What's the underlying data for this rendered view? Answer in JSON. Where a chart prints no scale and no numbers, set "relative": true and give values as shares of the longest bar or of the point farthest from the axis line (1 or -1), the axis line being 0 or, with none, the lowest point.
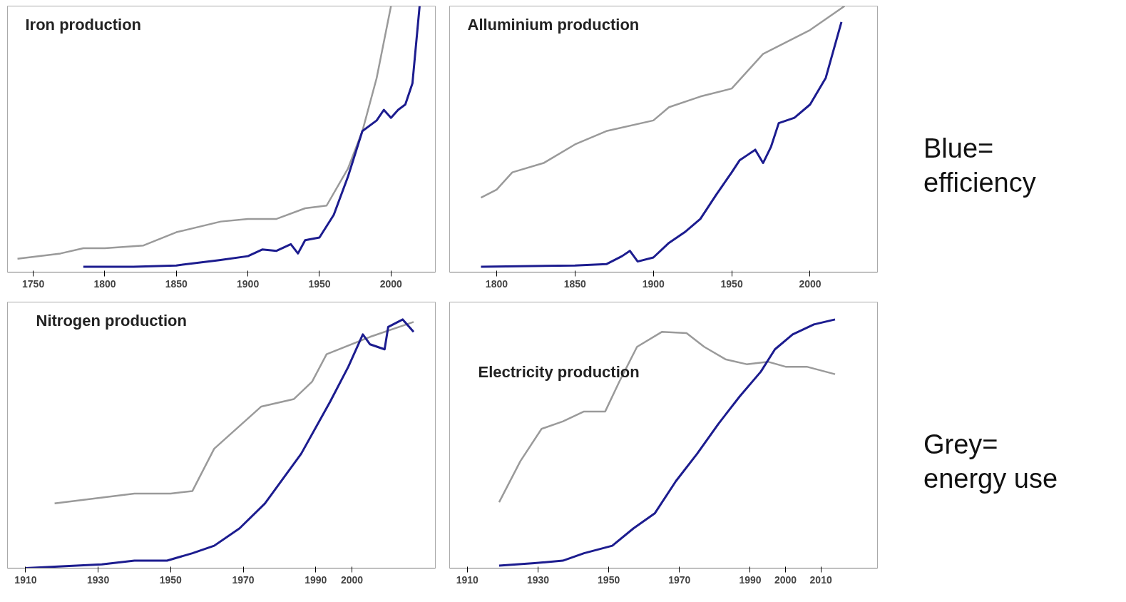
{
  "chart_data": [
    {
      "type": "line",
      "title": "Iron production",
      "relative": true,
      "tick_labels": "x",
      "grid": false,
      "xlim": [
        1732,
        2031
      ],
      "xticks": [
        1750,
        1800,
        1850,
        1900,
        1950,
        2000
      ],
      "series": [
        {
          "color": "#9a9a9a",
          "x": [
            1739,
            1769,
            1785,
            1800,
            1827,
            1850,
            1881,
            1900,
            1920,
            1940,
            1955,
            1970,
            1980,
            1990,
            2000
          ],
          "values": [
            0.05,
            0.07,
            0.09,
            0.09,
            0.1,
            0.15,
            0.19,
            0.2,
            0.2,
            0.24,
            0.25,
            0.39,
            0.53,
            0.73,
            1.0
          ]
        },
        {
          "color": "#1c1c8f",
          "x": [
            1785,
            1820,
            1850,
            1880,
            1900,
            1910,
            1920,
            1930,
            1935,
            1940,
            1950,
            1960,
            1970,
            1980,
            1990,
            1995,
            2000,
            2005,
            2010,
            2015,
            2020
          ],
          "values": [
            0.02,
            0.02,
            0.025,
            0.045,
            0.06,
            0.085,
            0.08,
            0.105,
            0.07,
            0.12,
            0.13,
            0.215,
            0.36,
            0.53,
            0.57,
            0.61,
            0.58,
            0.61,
            0.63,
            0.71,
            1.0
          ]
        }
      ]
    },
    {
      "type": "line",
      "title": "Alluminium production",
      "relative": true,
      "tick_labels": "x",
      "grid": false,
      "xlim": [
        1770,
        2043
      ],
      "xticks": [
        1800,
        1850,
        1900,
        1950,
        2000
      ],
      "annotations": [
        "Blue=\nefficiency"
      ],
      "series": [
        {
          "color": "#9a9a9a",
          "x": [
            1790,
            1800,
            1810,
            1830,
            1850,
            1870,
            1900,
            1910,
            1930,
            1950,
            1970,
            2000,
            2022
          ],
          "values": [
            0.28,
            0.31,
            0.375,
            0.41,
            0.48,
            0.53,
            0.57,
            0.62,
            0.66,
            0.69,
            0.82,
            0.91,
            1.0
          ]
        },
        {
          "color": "#1c1c8f",
          "x": [
            1790,
            1850,
            1870,
            1880,
            1885,
            1890,
            1900,
            1910,
            1920,
            1930,
            1940,
            1950,
            1955,
            1960,
            1965,
            1970,
            1975,
            1980,
            1990,
            2000,
            2010,
            2020
          ],
          "values": [
            0.02,
            0.025,
            0.03,
            0.06,
            0.08,
            0.04,
            0.055,
            0.11,
            0.15,
            0.2,
            0.29,
            0.375,
            0.42,
            0.44,
            0.46,
            0.41,
            0.47,
            0.56,
            0.58,
            0.63,
            0.73,
            0.94
          ]
        }
      ]
    },
    {
      "type": "line",
      "title": "Nitrogen production",
      "relative": true,
      "tick_labels": "x",
      "grid": false,
      "xlim": [
        1905,
        2023
      ],
      "xticks": [
        1910,
        1930,
        1950,
        1970,
        1990,
        2000
      ],
      "series": [
        {
          "color": "#9a9a9a",
          "x": [
            1918,
            1940,
            1950,
            1956,
            1962,
            1975,
            1984,
            1989,
            1993,
            2005,
            2017
          ],
          "values": [
            0.26,
            0.3,
            0.3,
            0.31,
            0.48,
            0.65,
            0.68,
            0.75,
            0.86,
            0.93,
            0.99
          ]
        },
        {
          "color": "#1c1c8f",
          "x": [
            1910,
            1931,
            1940,
            1949,
            1956,
            1962,
            1969,
            1976,
            1986,
            1994,
            1999,
            2003,
            2005,
            2009,
            2010,
            2014,
            2017
          ],
          "values": [
            0,
            0.015,
            0.03,
            0.03,
            0.06,
            0.09,
            0.16,
            0.26,
            0.46,
            0.67,
            0.81,
            0.94,
            0.9,
            0.88,
            0.97,
            1.0,
            0.95
          ]
        }
      ]
    },
    {
      "type": "line",
      "title": "Electricity production",
      "relative": true,
      "tick_labels": "x",
      "grid": false,
      "xlim": [
        1905,
        2026
      ],
      "xticks": [
        1910,
        1930,
        1950,
        1970,
        1990,
        2000,
        2010
      ],
      "annotations": [
        "Grey=\nenergy use"
      ],
      "series": [
        {
          "color": "#9a9a9a",
          "x": [
            1919,
            1925,
            1931,
            1937,
            1943,
            1949,
            1953,
            1958,
            1965,
            1972,
            1977,
            1983,
            1989,
            1995,
            2000,
            2006,
            2014
          ],
          "values": [
            0.265,
            0.43,
            0.56,
            0.59,
            0.63,
            0.63,
            0.75,
            0.89,
            0.95,
            0.945,
            0.89,
            0.84,
            0.82,
            0.83,
            0.81,
            0.81,
            0.78
          ]
        },
        {
          "color": "#1c1c8f",
          "x": [
            1919,
            1929,
            1937,
            1943,
            1951,
            1957,
            1963,
            1969,
            1975,
            1981,
            1987,
            1993,
            1997,
            2002,
            2008,
            2014
          ],
          "values": [
            0.01,
            0.02,
            0.03,
            0.06,
            0.09,
            0.16,
            0.22,
            0.35,
            0.46,
            0.58,
            0.69,
            0.79,
            0.88,
            0.94,
            0.98,
            1.0
          ]
        }
      ]
    }
  ]
}
